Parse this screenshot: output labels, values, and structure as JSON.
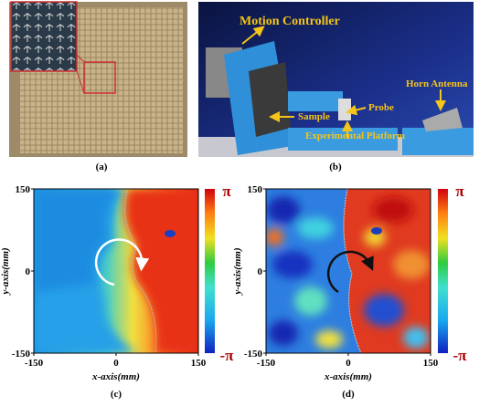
{
  "panels": [
    {
      "label": "(a)"
    },
    {
      "label": "(b)",
      "annotations": [
        "Motion Controller",
        "Sample",
        "Probe",
        "Horn Antenna",
        "Experimental Platform"
      ]
    },
    {
      "label": "(c)",
      "x_axis": {
        "label": "x-axis(mm)",
        "ticks": [
          -150,
          0,
          150
        ]
      },
      "y_axis": {
        "label": "y-axis(mm)",
        "ticks": [
          -150,
          0,
          150
        ]
      },
      "colorbar": {
        "max": "π",
        "min": "-π"
      }
    },
    {
      "label": "(d)",
      "x_axis": {
        "label": "x-axis(mm)",
        "ticks": [
          -150,
          0,
          150
        ]
      },
      "y_axis": {
        "label": "y-axis(mm)",
        "ticks": [
          -150,
          0,
          150
        ]
      },
      "colorbar": {
        "max": "π",
        "min": "-π"
      }
    }
  ]
}
